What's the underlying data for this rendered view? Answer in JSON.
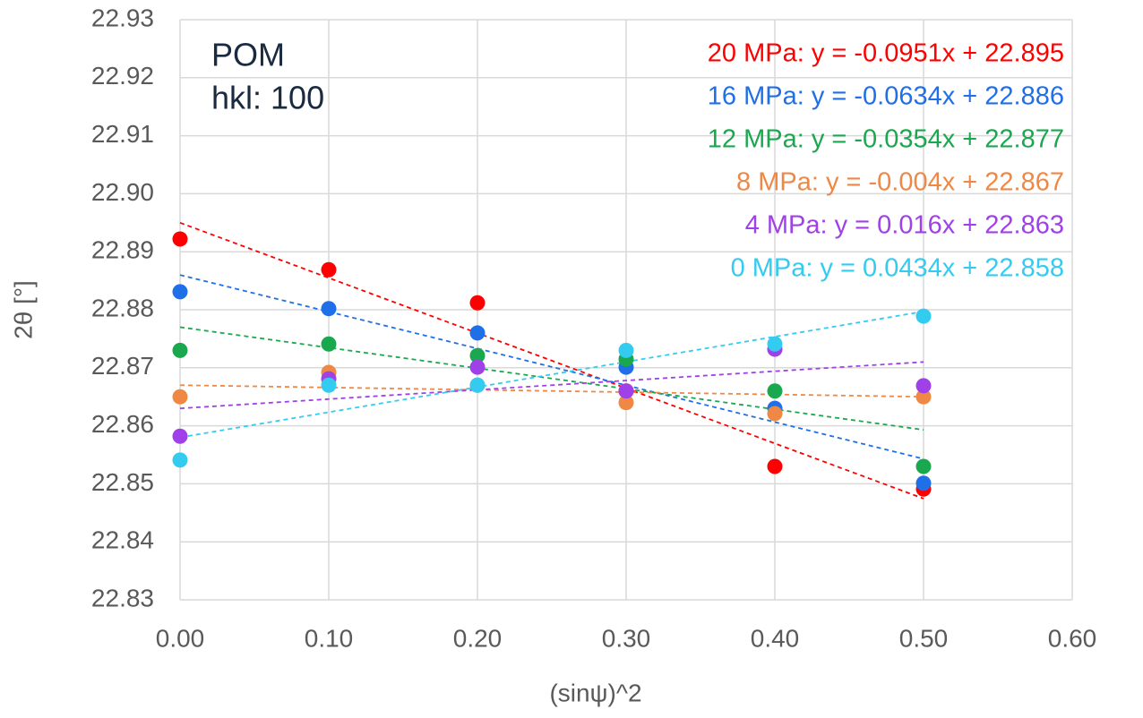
{
  "chart_data": {
    "type": "scatter",
    "x_label": "(sinψ)^2",
    "y_label": "2θ [°]",
    "annotations": [
      "POM",
      "hkl: 100"
    ],
    "x": [
      0,
      0.1,
      0.2,
      0.3,
      0.4,
      0.5
    ],
    "xlim": [
      0,
      0.6
    ],
    "xticks": [
      {
        "value": 0,
        "label": "0.00"
      },
      {
        "value": 0.1,
        "label": "0.10"
      },
      {
        "value": 0.2,
        "label": "0.20"
      },
      {
        "value": 0.3,
        "label": "0.30"
      },
      {
        "value": 0.4,
        "label": "0.40"
      },
      {
        "value": 0.5,
        "label": "0.50"
      },
      {
        "value": 0.6,
        "label": "0.60"
      }
    ],
    "ylim": [
      22.83,
      22.93
    ],
    "yticks": [
      22.83,
      22.84,
      22.85,
      22.86,
      22.87,
      22.88,
      22.89,
      {
        "value": 22.9,
        "label": "22.90"
      },
      22.91,
      22.92,
      22.93
    ],
    "grid": true,
    "series": [
      {
        "name": "20 MPa: y = -0.0951x + 22.895",
        "color": "#ff0000",
        "values": [
          22.8922,
          22.8869,
          22.8812,
          22.866,
          22.853,
          22.8491
        ],
        "trend_slope": -0.0951,
        "trend_intercept": 22.895
      },
      {
        "name": "16 MPa: y = -0.0634x + 22.886",
        "color": "#1f6fe8",
        "values": [
          22.8831,
          22.8802,
          22.876,
          22.8701,
          22.863,
          22.8501
        ],
        "trend_slope": -0.0634,
        "trend_intercept": 22.886
      },
      {
        "name": "12 MPa: y = -0.0354x + 22.877",
        "color": "#1aa84f",
        "values": [
          22.873,
          22.8741,
          22.8721,
          22.8715,
          22.866,
          22.853
        ],
        "trend_slope": -0.0354,
        "trend_intercept": 22.877
      },
      {
        "name": "8 MPa: y = -0.004x + 22.867",
        "color": "#ee8844",
        "values": [
          22.865,
          22.8692,
          22.867,
          22.864,
          22.8621,
          22.865
        ],
        "trend_slope": -0.004,
        "trend_intercept": 22.867
      },
      {
        "name": "4 MPa: y = 0.016x + 22.863",
        "color": "#a040e8",
        "values": [
          22.8582,
          22.8681,
          22.8701,
          22.866,
          22.8732,
          22.8669
        ],
        "trend_slope": 0.016,
        "trend_intercept": 22.863
      },
      {
        "name": "0 MPa: y = 0.0434x + 22.858",
        "color": "#33ccf0",
        "values": [
          22.8541,
          22.867,
          22.867,
          22.873,
          22.8741,
          22.8789
        ],
        "trend_slope": 0.0434,
        "trend_intercept": 22.858
      }
    ]
  }
}
